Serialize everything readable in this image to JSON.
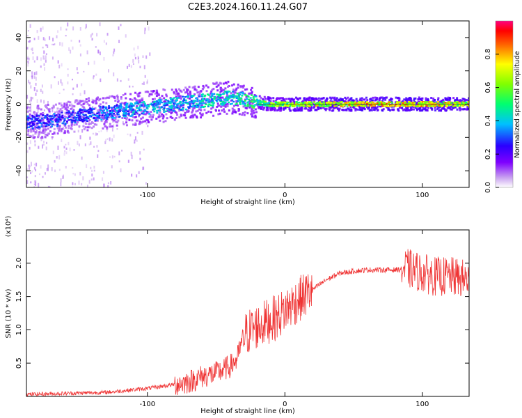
{
  "title": "C2E3.2024.160.11.24.G07",
  "chart_data": [
    {
      "type": "heatmap",
      "xlabel": "Height of straight line (km)",
      "ylabel": "Frequency (Hz)",
      "xlim": [
        -188,
        134
      ],
      "ylim": [
        -50,
        50
      ],
      "xticks": [
        -100,
        0,
        100
      ],
      "yticks": [
        -40,
        -20,
        0,
        20,
        40
      ],
      "grid": false,
      "colorbar": {
        "label": "Normalized spectral amplitude",
        "range": [
          0,
          1
        ],
        "ticks": [
          "0.0",
          "0.2",
          "0.4",
          "0.6",
          "0.8"
        ]
      },
      "ridge": {
        "x": [
          -188,
          -170,
          -150,
          -130,
          -120,
          -110,
          -100,
          -90,
          -80,
          -70,
          -60,
          -50,
          -40,
          -30,
          -20,
          -10,
          0,
          20,
          40,
          60,
          80,
          100,
          120,
          134
        ],
        "y": [
          -11,
          -10,
          -7,
          -5,
          -4,
          -3,
          -2,
          -1,
          0,
          1,
          2,
          3,
          4,
          3,
          1,
          0,
          0,
          0,
          0,
          0,
          0,
          0,
          0,
          0
        ],
        "amplitude": [
          0.35,
          0.35,
          0.35,
          0.4,
          0.4,
          0.45,
          0.45,
          0.45,
          0.45,
          0.45,
          0.5,
          0.5,
          0.5,
          0.55,
          0.6,
          0.7,
          0.75,
          0.8,
          0.85,
          0.9,
          0.9,
          0.9,
          0.85,
          0.8
        ]
      }
    },
    {
      "type": "line",
      "xlabel": "Height of straight line (km)",
      "ylabel": "SNR (10 * v/v)",
      "yscale_label": "(x10⁴)",
      "xlim": [
        -188,
        134
      ],
      "ylim": [
        0,
        2.5
      ],
      "xticks": [
        -100,
        0,
        100
      ],
      "yticks": [
        0.5,
        1.0,
        1.5,
        2.0
      ],
      "grid": false,
      "color": "#ef3333",
      "series": [
        {
          "x": [
            -188,
            -170,
            -150,
            -130,
            -120,
            -110,
            -100,
            -90,
            -80,
            -70,
            -60,
            -50,
            -40,
            -35,
            -30,
            -25,
            -20,
            -15,
            -10,
            -5,
            0,
            10,
            20,
            30,
            40,
            50,
            60,
            70,
            80,
            90,
            100,
            110,
            120,
            134
          ],
          "y": [
            0.03,
            0.04,
            0.05,
            0.06,
            0.08,
            0.1,
            0.12,
            0.15,
            0.18,
            0.22,
            0.3,
            0.35,
            0.45,
            0.55,
            0.9,
            1.0,
            1.05,
            1.1,
            1.15,
            1.2,
            1.3,
            1.45,
            1.6,
            1.75,
            1.85,
            1.88,
            1.9,
            1.9,
            1.9,
            1.92,
            1.85,
            1.8,
            1.8,
            1.75
          ]
        }
      ]
    }
  ]
}
